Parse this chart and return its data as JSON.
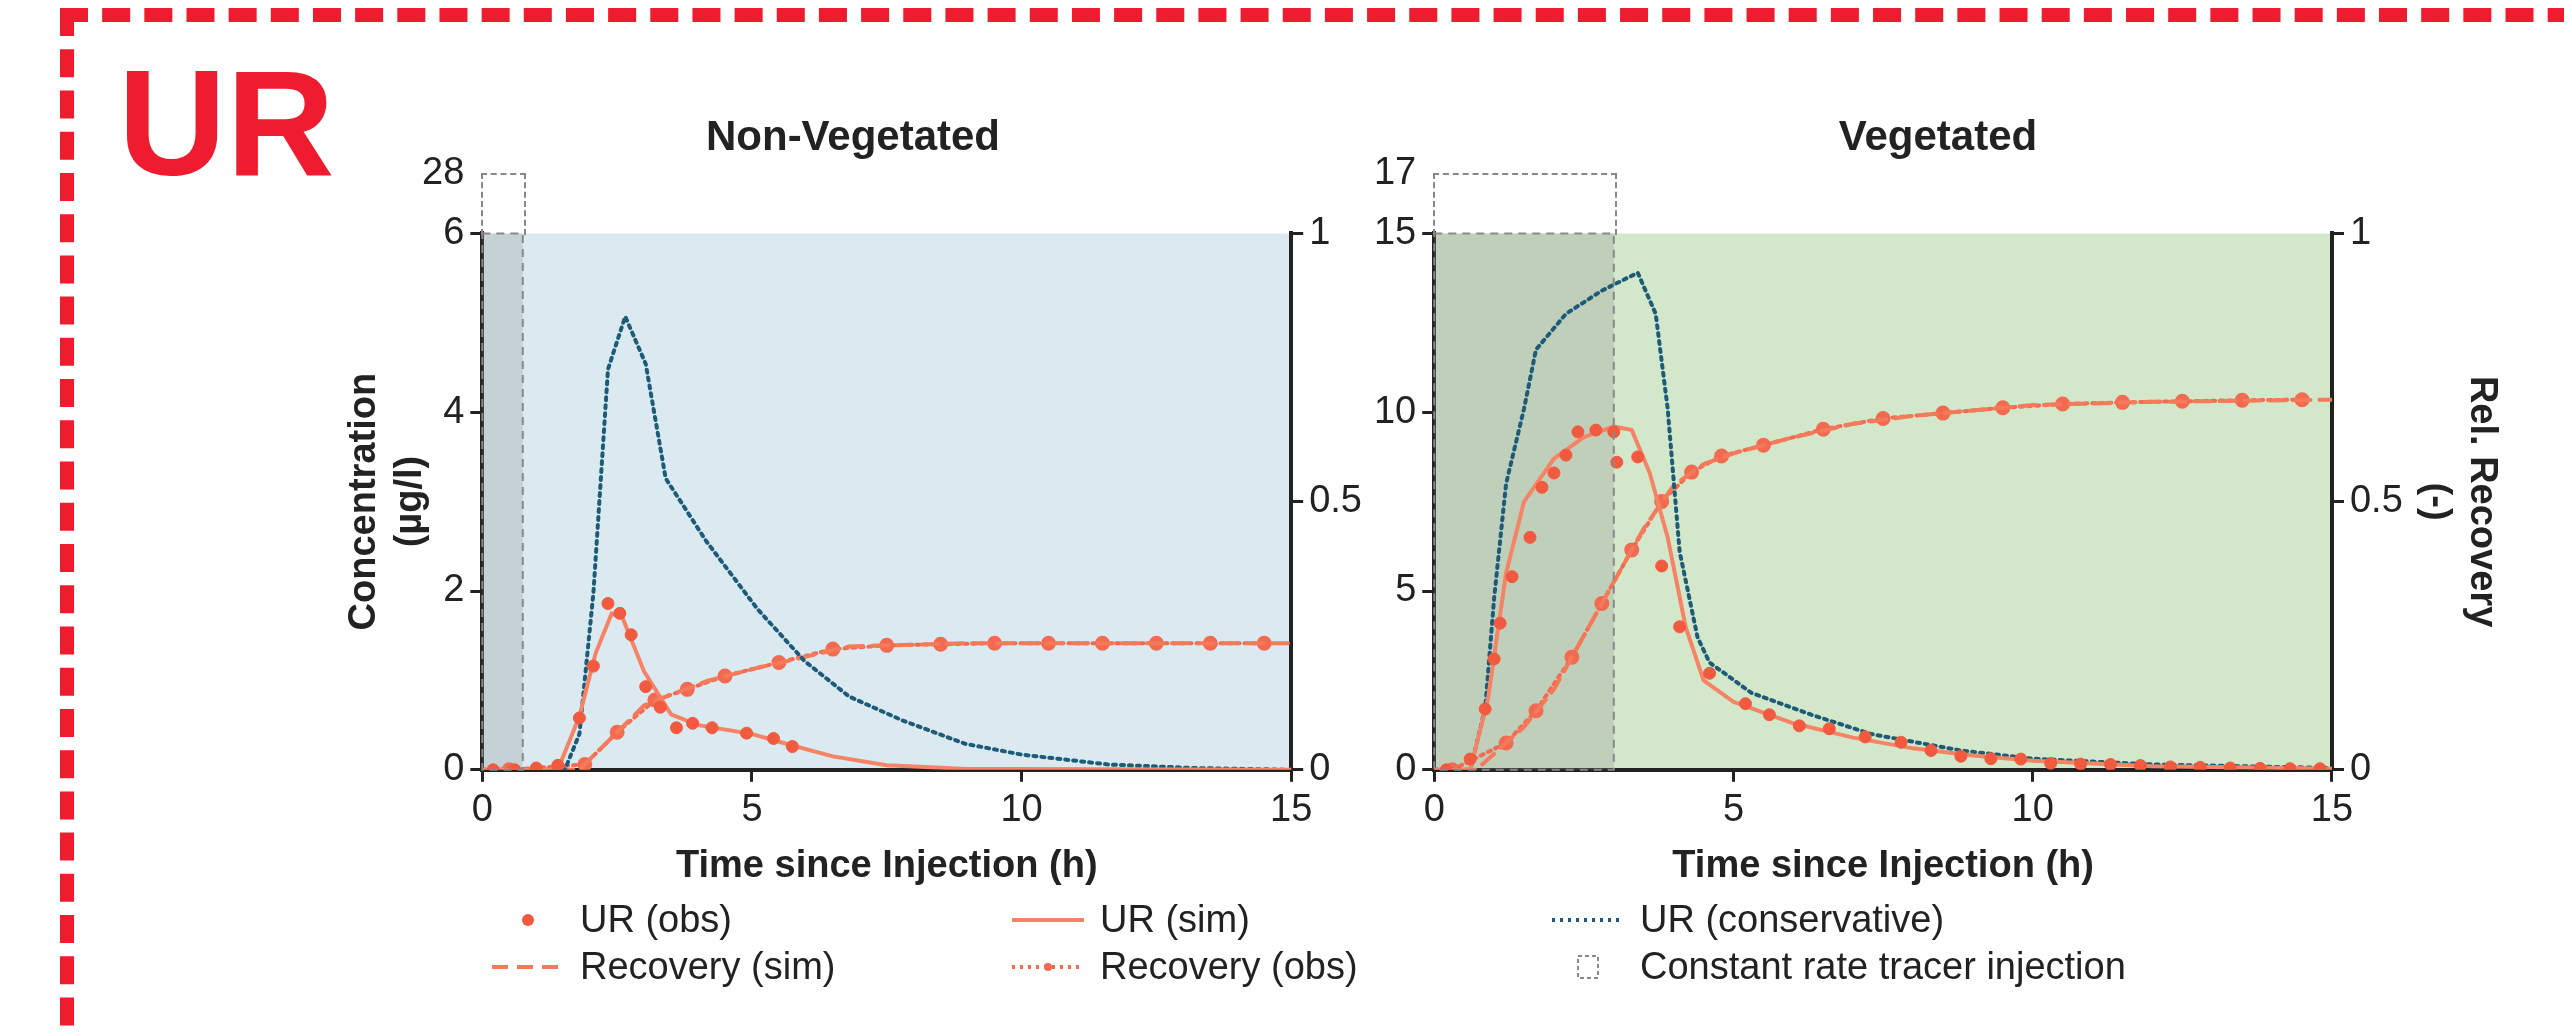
{
  "chart_data": [
    {
      "type": "line",
      "title": "Non-Vegetated",
      "xlabel": "Time since Injection (h)",
      "ylabel": "Concentration (µg/l)",
      "xlim": [
        0,
        15
      ],
      "xticks": [
        0,
        5,
        10,
        15
      ],
      "ylim": [
        0,
        6
      ],
      "yticks": [
        0,
        2,
        4,
        6
      ],
      "y2lim": [
        0,
        1
      ],
      "y2ticks": [
        0,
        0.5,
        1
      ],
      "legend": "bottom",
      "annotations": [
        "UR",
        "28"
      ],
      "bands": [
        {
          "axis": "x",
          "from": 0,
          "to": 0.75,
          "label": "Constant rate tracer injection",
          "color": "#888888"
        }
      ],
      "series": [
        {
          "name": "UR (obs)",
          "type": "scatter",
          "marker": "circle",
          "color": "#f15a3e",
          "x": [
            0.2,
            0.6,
            1.0,
            1.4,
            1.8,
            2.06,
            2.33,
            2.55,
            2.76,
            3.03,
            3.3,
            3.6,
            3.9,
            4.26,
            4.9,
            5.4,
            5.75
          ],
          "values": [
            0,
            0,
            0.02,
            0.05,
            0.58,
            1.16,
            1.86,
            1.75,
            1.51,
            0.93,
            0.7,
            0.47,
            0.52,
            0.47,
            0.41,
            0.35,
            0.26
          ]
        },
        {
          "name": "UR (sim)",
          "type": "line",
          "line_style": "solid",
          "color": "#f58466",
          "x": [
            0,
            1.4,
            1.8,
            2.1,
            2.4,
            2.6,
            3.0,
            3.5,
            4.0,
            5.0,
            5.7,
            6.5,
            7.5,
            9,
            15
          ],
          "values": [
            0,
            0,
            0.6,
            1.3,
            1.75,
            1.7,
            1.1,
            0.62,
            0.5,
            0.4,
            0.28,
            0.15,
            0.05,
            0.01,
            0
          ]
        },
        {
          "name": "UR (conservative)",
          "type": "line",
          "line_style": "dotted",
          "color": "#1d5b78",
          "x": [
            0,
            1.53,
            1.8,
            2.06,
            2.33,
            2.65,
            3.03,
            3.4,
            4.15,
            5.1,
            5.97,
            6.8,
            7.8,
            8.96,
            10,
            11.6,
            13.2,
            15
          ],
          "values": [
            0,
            0,
            0.4,
            1.98,
            4.48,
            5.07,
            4.54,
            3.26,
            2.56,
            1.8,
            1.22,
            0.82,
            0.55,
            0.29,
            0.17,
            0.06,
            0.02,
            0
          ]
        },
        {
          "name": "Recovery (sim)",
          "type": "line",
          "line_style": "dashed",
          "axis": "y2",
          "color": "#f47a5a",
          "x": [
            0,
            1.8,
            2.3,
            3.0,
            3.5,
            4.15,
            5.1,
            5.97,
            6.8,
            7.9,
            9,
            15
          ],
          "values": [
            0,
            0,
            0.05,
            0.12,
            0.14,
            0.165,
            0.19,
            0.21,
            0.23,
            0.233,
            0.236,
            0.236
          ]
        },
        {
          "name": "Recovery (obs)",
          "type": "line",
          "line_style": "dotted",
          "marker": "circle",
          "axis": "y2",
          "color": "#f26b50",
          "x": [
            0.5,
            1.9,
            2.5,
            3.2,
            3.8,
            4.5,
            5.5,
            6.5,
            7.5,
            8.5,
            9.5,
            10.5,
            11.5,
            12.5,
            13.5,
            14.5
          ],
          "values": [
            0,
            0.01,
            0.07,
            0.13,
            0.15,
            0.175,
            0.2,
            0.225,
            0.232,
            0.234,
            0.236,
            0.236,
            0.236,
            0.236,
            0.236,
            0.236
          ]
        }
      ]
    },
    {
      "type": "line",
      "title": "Vegetated",
      "xlabel": "Time since Injection (h)",
      "y2label": "Rel. Recovery (-)",
      "xlim": [
        0,
        15
      ],
      "xticks": [
        0,
        5,
        10,
        15
      ],
      "ylim": [
        0,
        15
      ],
      "yticks": [
        0,
        5,
        10,
        15
      ],
      "y2lim": [
        0,
        1
      ],
      "y2ticks": [
        0,
        0.5,
        1
      ],
      "annotations": [
        "17"
      ],
      "bands": [
        {
          "axis": "x",
          "from": 0,
          "to": 3.0,
          "color": "#888888"
        }
      ],
      "series": [
        {
          "type": "scatter",
          "marker": "circle",
          "color": "#f15a3e",
          "x": [
            0.2,
            0.6,
            0.85,
            1.0,
            1.1,
            1.3,
            1.6,
            1.8,
            2.0,
            2.2,
            2.4,
            2.7,
            3.0,
            3.05,
            3.4,
            3.8,
            4.1,
            4.6,
            5.2,
            5.6,
            6.1,
            6.6,
            7.2,
            7.8,
            8.3,
            8.8,
            9.3,
            9.8,
            10.3,
            10.8,
            11.3,
            11.8,
            12.3,
            12.8,
            13.3,
            13.8,
            14.3,
            14.8
          ],
          "values": [
            0,
            0.3,
            1.7,
            3.1,
            4.1,
            5.4,
            6.5,
            7.9,
            8.3,
            8.8,
            9.45,
            9.5,
            9.45,
            8.6,
            8.75,
            5.7,
            4.0,
            2.7,
            1.85,
            1.54,
            1.23,
            1.15,
            0.92,
            0.77,
            0.54,
            0.38,
            0.31,
            0.3,
            0.18,
            0.16,
            0.15,
            0.12,
            0.08,
            0.07,
            0.05,
            0.04,
            0.03,
            0.03
          ]
        },
        {
          "type": "line",
          "line_style": "solid",
          "color": "#f58466",
          "x": [
            0,
            0.6,
            0.9,
            1.2,
            1.5,
            2.0,
            2.5,
            3.0,
            3.3,
            3.6,
            3.9,
            4.2,
            4.5,
            5.0,
            6.0,
            7.0,
            8.0,
            9.0,
            10,
            12,
            15
          ],
          "values": [
            0,
            0,
            2.0,
            5.5,
            7.5,
            8.7,
            9.3,
            9.6,
            9.5,
            8.3,
            6.5,
            4.0,
            2.5,
            1.9,
            1.3,
            0.9,
            0.6,
            0.4,
            0.25,
            0.1,
            0.03
          ]
        },
        {
          "type": "line",
          "line_style": "dotted",
          "color": "#1d5b78",
          "x": [
            0,
            0.6,
            0.85,
            1.0,
            1.2,
            1.5,
            1.7,
            2.2,
            2.8,
            3.4,
            3.7,
            3.9,
            4.1,
            4.4,
            4.6,
            5.3,
            6.3,
            7.3,
            8.8,
            10,
            12,
            15
          ],
          "values": [
            0,
            0,
            1.7,
            4.8,
            8.0,
            10.1,
            11.75,
            12.75,
            13.4,
            13.9,
            12.75,
            10.1,
            6.1,
            3.7,
            3.0,
            2.15,
            1.54,
            1.0,
            0.54,
            0.31,
            0.15,
            0.05
          ]
        },
        {
          "type": "line",
          "line_style": "dashed",
          "axis": "y2",
          "color": "#f47a5a",
          "x": [
            0,
            0.7,
            1.5,
            2.0,
            2.5,
            3.0,
            3.5,
            4.0,
            4.5,
            5.0,
            6.0,
            7.0,
            8.0,
            9.0,
            10,
            12,
            15
          ],
          "values": [
            0,
            0,
            0.08,
            0.15,
            0.25,
            0.35,
            0.45,
            0.53,
            0.57,
            0.59,
            0.62,
            0.645,
            0.66,
            0.67,
            0.68,
            0.686,
            0.69
          ]
        },
        {
          "type": "line",
          "line_style": "dotted",
          "marker": "circle",
          "axis": "y2",
          "color": "#f26b50",
          "x": [
            0.3,
            1.2,
            1.7,
            2.3,
            2.8,
            3.3,
            3.8,
            4.3,
            4.8,
            5.5,
            6.5,
            7.5,
            8.5,
            9.5,
            10.5,
            11.5,
            12.5,
            13.5,
            14.5
          ],
          "values": [
            0,
            0.05,
            0.11,
            0.21,
            0.31,
            0.41,
            0.5,
            0.555,
            0.585,
            0.605,
            0.635,
            0.655,
            0.665,
            0.675,
            0.682,
            0.685,
            0.687,
            0.689,
            0.69
          ]
        }
      ]
    }
  ]
}
